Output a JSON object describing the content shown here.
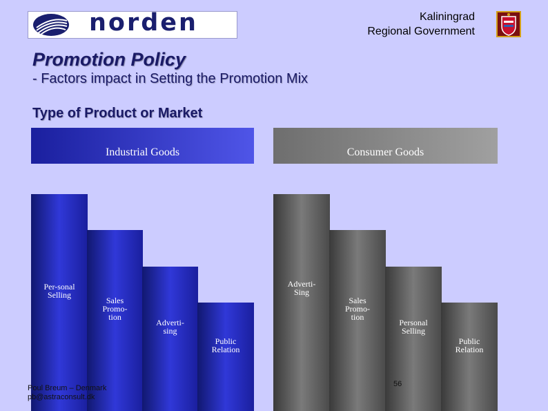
{
  "header": {
    "logo_text": "norden",
    "region_line1": "Kaliningrad",
    "region_line2": "Regional Government"
  },
  "title": "Promotion Policy",
  "subtitle": "- Factors impact in Setting the Promotion Mix",
  "section": "Type of Product or Market",
  "industrial": {
    "header": "Industrial Goods",
    "bars": [
      {
        "label": "Per-sonal\nSelling"
      },
      {
        "label": "Sales\nPromo-\ntion"
      },
      {
        "label": "Adverti-\nsing"
      },
      {
        "label": "Public\nRelation"
      }
    ]
  },
  "consumer": {
    "header": "Consumer Goods",
    "bars": [
      {
        "label": "Adverti-\nSing"
      },
      {
        "label": "Sales\nPromo-\ntion"
      },
      {
        "label": "Personal\nSelling"
      },
      {
        "label": "Public\nRelation"
      }
    ]
  },
  "footer": {
    "author": "Poul Breum – Denmark",
    "email": "pb@astraconsult.dk",
    "page": "56"
  },
  "colors": {
    "background": "#ccccff",
    "industrial": "#1a1f9e",
    "consumer": "#6e6e6e",
    "title": "#1a1a66"
  }
}
